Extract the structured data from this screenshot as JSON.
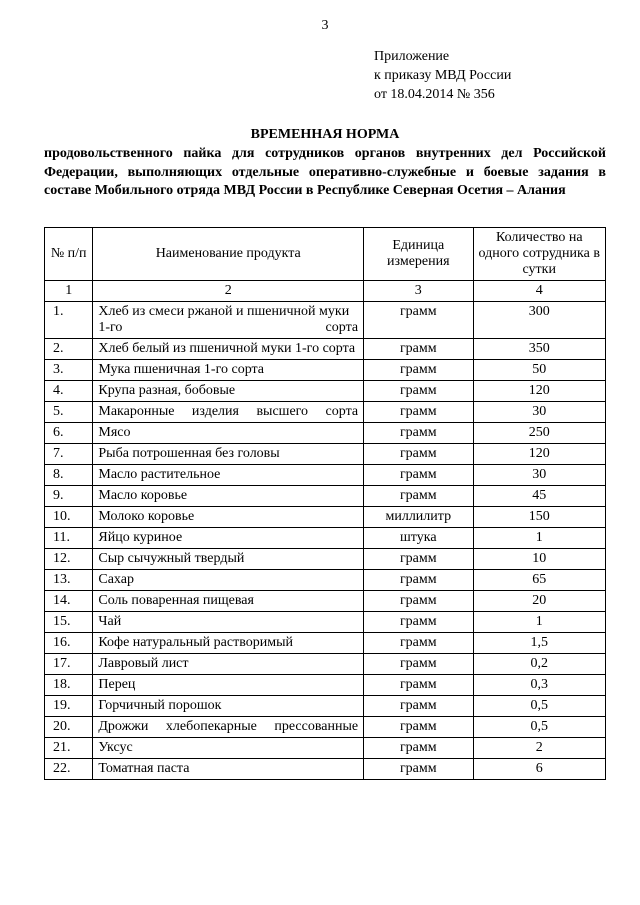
{
  "page_number": "3",
  "appendix": {
    "line1": "Приложение",
    "line2": "к приказу МВД России",
    "line3": "от 18.04.2014 №   356"
  },
  "title": "ВРЕМЕННАЯ НОРМА",
  "subtitle": "продовольственного пайка для сотрудников органов внутренних дел Российской Федерации, выполняющих отдельные оперативно-служебные и боевые задания в составе Мобильного отряда МВД России в Республике Северная Осетия – Алания",
  "table": {
    "columns": [
      "№ п/п",
      "Наименование продукта",
      "Единица измерения",
      "Количество на одного сотрудника в сутки"
    ],
    "header_nums": [
      "1",
      "2",
      "3",
      "4"
    ],
    "rows": [
      [
        "1.",
        "Хлеб из смеси ржаной и пшеничной муки   1-го сорта",
        "грамм",
        "300"
      ],
      [
        "2.",
        "Хлеб белый из пшеничной муки 1-го сорта",
        "грамм",
        "350"
      ],
      [
        "3.",
        "Мука пшеничная 1-го сорта",
        "грамм",
        "50"
      ],
      [
        "4.",
        "Крупа разная, бобовые",
        "грамм",
        "120"
      ],
      [
        "5.",
        "Макаронные изделия высшего сорта",
        "грамм",
        "30"
      ],
      [
        "6.",
        "Мясо",
        "грамм",
        "250"
      ],
      [
        "7.",
        "Рыба потрошенная без головы",
        "грамм",
        "120"
      ],
      [
        "8.",
        "Масло растительное",
        "грамм",
        "30"
      ],
      [
        "9.",
        "Масло коровье",
        "грамм",
        "45"
      ],
      [
        "10.",
        "Молоко коровье",
        "миллилитр",
        "150"
      ],
      [
        "11.",
        "Яйцо куриное",
        "штука",
        "1"
      ],
      [
        "12.",
        "Сыр сычужный твердый",
        "грамм",
        "10"
      ],
      [
        "13.",
        "Сахар",
        "грамм",
        "65"
      ],
      [
        "14.",
        "Соль поваренная пищевая",
        "грамм",
        "20"
      ],
      [
        "15.",
        "Чай",
        "грамм",
        "1"
      ],
      [
        "16.",
        "Кофе натуральный растворимый",
        "грамм",
        "1,5"
      ],
      [
        "17.",
        "Лавровый лист",
        "грамм",
        "0,2"
      ],
      [
        "18.",
        "Перец",
        "грамм",
        "0,3"
      ],
      [
        "19.",
        "Горчичный порошок",
        "грамм",
        "0,5"
      ],
      [
        "20.",
        "Дрожжи хлебопекарные прессованные",
        "грамм",
        "0,5"
      ],
      [
        "21.",
        "Уксус",
        "грамм",
        "2"
      ],
      [
        "22.",
        "Томатная паста",
        "грамм",
        "6"
      ]
    ],
    "justify_name_rows": [
      0,
      4,
      19
    ]
  }
}
